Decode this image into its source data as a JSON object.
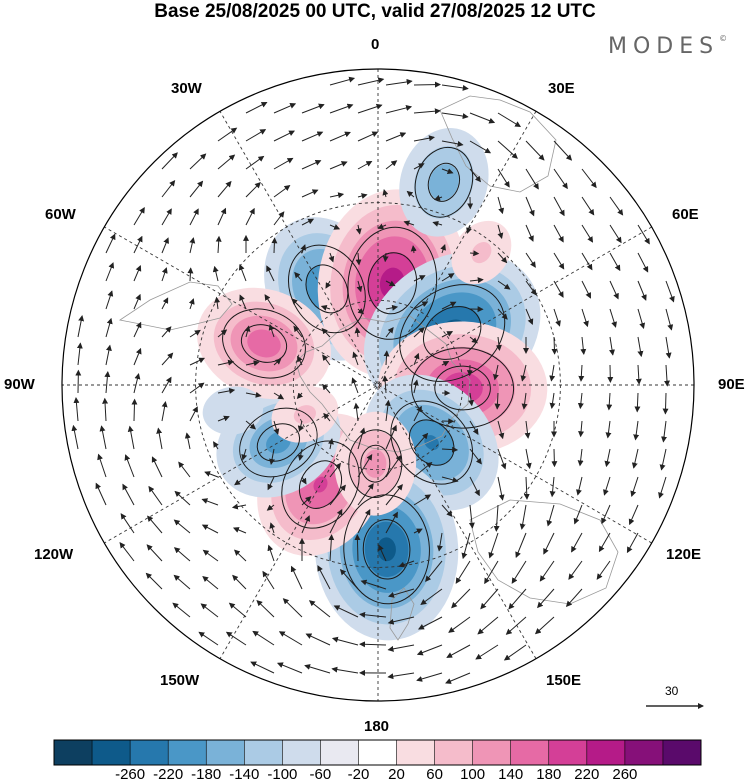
{
  "title": "Base 25/08/2025 00 UTC, valid 27/08/2025 12 UTC",
  "brand": "MODES",
  "brand_mark": "©",
  "longitude_labels": {
    "lon_0": "0",
    "lon_30e": "30E",
    "lon_60e": "60E",
    "lon_90e": "90E",
    "lon_120e": "120E",
    "lon_150e": "150E",
    "lon_180": "180",
    "lon_150w": "150W",
    "lon_120w": "120W",
    "lon_90w": "90W",
    "lon_60w": "60W",
    "lon_30w": "30W"
  },
  "reference_vector": {
    "label": "30"
  },
  "colorbar": {
    "colors": [
      "#0d3f60",
      "#0e5a8a",
      "#2678ad",
      "#4a97c7",
      "#7ab2d8",
      "#abcbe5",
      "#cfdcec",
      "#e9e9f1",
      "#ffffff",
      "#f9dde1",
      "#f5bccb",
      "#ef95b6",
      "#e66aa5",
      "#d43f97",
      "#b51b88",
      "#861079",
      "#5a0a6b"
    ],
    "tick_labels": [
      "-260",
      "-220",
      "-180",
      "-140",
      "-100",
      "-60",
      "-20",
      "20",
      "60",
      "100",
      "140",
      "180",
      "220",
      "260"
    ]
  },
  "anomaly_centers": [
    {
      "name": "neg-30w",
      "lon": -28,
      "lat": -52,
      "value": -180
    },
    {
      "name": "pos-0",
      "lon": 8,
      "lat": -54,
      "value": 240
    },
    {
      "name": "neg-50e",
      "lon": 55,
      "lat": -58,
      "value": -240
    },
    {
      "name": "pos-90e",
      "lon": 92,
      "lat": -60,
      "value": 210
    },
    {
      "name": "neg-130e",
      "lon": 137,
      "lat": -62,
      "value": -180
    },
    {
      "name": "neg-175e",
      "lon": 177,
      "lat": -35,
      "value": -230
    },
    {
      "name": "pos-150w",
      "lon": -150,
      "lat": -50,
      "value": 180
    },
    {
      "name": "neg-120w",
      "lon": -120,
      "lat": -50,
      "value": -150
    },
    {
      "name": "pos-70w",
      "lon": -70,
      "lat": -48,
      "value": 160
    },
    {
      "name": "neg-15e",
      "lon": 18,
      "lat": -22,
      "value": -120
    },
    {
      "name": "pos-180",
      "lon": -178,
      "lat": -62,
      "value": 110
    },
    {
      "name": "pos-35e",
      "lon": 38,
      "lat": -34,
      "value": 60
    },
    {
      "name": "neg-100w",
      "lon": -100,
      "lat": -40,
      "value": -50
    },
    {
      "name": "pos-110w",
      "lon": -112,
      "lat": -62,
      "value": 60
    }
  ]
}
